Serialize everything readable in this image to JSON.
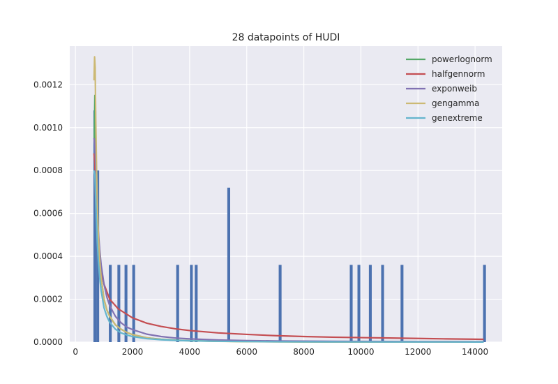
{
  "chart_data": {
    "type": "bar",
    "title": "28 datapoints of HUDI",
    "xlabel": "",
    "ylabel": "",
    "xlim": [
      -200,
      14950
    ],
    "ylim": [
      0,
      0.00138
    ],
    "x_ticks": [
      0,
      2000,
      4000,
      6000,
      8000,
      10000,
      12000,
      14000
    ],
    "x_tick_labels": [
      "0",
      "2000",
      "4000",
      "6000",
      "8000",
      "10000",
      "12000",
      "14000"
    ],
    "y_ticks": [
      0,
      0.0002,
      0.0004,
      0.0006,
      0.0008,
      0.001,
      0.0012
    ],
    "y_tick_labels": [
      "0.0000",
      "0.0002",
      "0.0004",
      "0.0006",
      "0.0008",
      "0.0010",
      "0.0012"
    ],
    "grid": true,
    "legend_position": "top-right",
    "histogram": {
      "color": "#4c72b0",
      "bin_width": 100,
      "bins": [
        {
          "x": 680,
          "value": 0.00108
        },
        {
          "x": 780,
          "value": 0.0008
        },
        {
          "x": 1220,
          "value": 0.00036
        },
        {
          "x": 1520,
          "value": 0.00036
        },
        {
          "x": 1770,
          "value": 0.00036
        },
        {
          "x": 2040,
          "value": 0.00036
        },
        {
          "x": 3580,
          "value": 0.00036
        },
        {
          "x": 4060,
          "value": 0.00036
        },
        {
          "x": 4230,
          "value": 0.00036
        },
        {
          "x": 5370,
          "value": 0.00072
        },
        {
          "x": 7170,
          "value": 0.00036
        },
        {
          "x": 9660,
          "value": 0.00036
        },
        {
          "x": 9930,
          "value": 0.00036
        },
        {
          "x": 10330,
          "value": 0.00036
        },
        {
          "x": 10760,
          "value": 0.00036
        },
        {
          "x": 11440,
          "value": 0.00036
        },
        {
          "x": 14330,
          "value": 0.00036
        }
      ]
    },
    "series": [
      {
        "name": "powerlognorm",
        "color": "#55a868",
        "x": [
          660,
          680,
          700,
          730,
          760,
          800,
          850,
          900,
          1000,
          1100,
          1200,
          1400,
          1600,
          1800,
          2000,
          2500,
          3000,
          3500,
          4000,
          5000,
          6000,
          7000,
          8000,
          9000,
          10000,
          11000,
          12000,
          13000,
          14300
        ],
        "y": [
          0.00095,
          0.00115,
          0.001,
          0.0008,
          0.00065,
          0.0005,
          0.00038,
          0.0003,
          0.0002,
          0.00015,
          0.00012,
          8e-05,
          6e-05,
          4.5e-05,
          3.5e-05,
          2e-05,
          1.3e-05,
          9e-06,
          6.5e-06,
          4e-06,
          2.5e-06,
          1.7e-06,
          1.2e-06,
          9e-07,
          7e-07,
          5e-07,
          4e-07,
          3e-07,
          2e-07
        ]
      },
      {
        "name": "halfgennorm",
        "color": "#c44e52",
        "x": [
          650,
          680,
          700,
          750,
          800,
          900,
          1000,
          1200,
          1500,
          2000,
          2500,
          3000,
          3500,
          4000,
          5000,
          6000,
          7000,
          8000,
          9000,
          10000,
          11000,
          12000,
          13000,
          14300
        ],
        "y": [
          0.00088,
          0.00083,
          0.0007,
          0.00052,
          0.00043,
          0.00033,
          0.00027,
          0.0002,
          0.000155,
          0.000113,
          8.8e-05,
          7.3e-05,
          6.2e-05,
          5.4e-05,
          4.3e-05,
          3.6e-05,
          3e-05,
          2.6e-05,
          2.3e-05,
          2.1e-05,
          1.9e-05,
          1.7e-05,
          1.5e-05,
          1.3e-05
        ]
      },
      {
        "name": "exponweib",
        "color": "#8172b2",
        "x": [
          650,
          680,
          700,
          730,
          760,
          800,
          850,
          900,
          1000,
          1100,
          1200,
          1400,
          1600,
          1800,
          2000,
          2500,
          3000,
          3500,
          4000,
          5000,
          6000,
          7000,
          8000,
          9000,
          10000,
          11000,
          12000,
          13000,
          14300
        ],
        "y": [
          0.00095,
          0.00092,
          0.00085,
          0.00072,
          0.00062,
          0.00052,
          0.00043,
          0.00036,
          0.00027,
          0.00021,
          0.00017,
          0.00012,
          9e-05,
          7e-05,
          5.8e-05,
          3.7e-05,
          2.6e-05,
          1.9e-05,
          1.5e-05,
          1e-05,
          7e-06,
          5.5e-06,
          4.5e-06,
          3.8e-06,
          3.3e-06,
          3e-06,
          2.7e-06,
          2.5e-06,
          2.2e-06
        ]
      },
      {
        "name": "gengamma",
        "color": "#ccb974",
        "x": [
          650,
          670,
          690,
          710,
          740,
          770,
          800,
          850,
          900,
          1000,
          1100,
          1200,
          1400,
          1600,
          1800,
          2000,
          2500,
          3000,
          3500,
          4000,
          5000,
          6000,
          7000,
          8000,
          9000,
          10000,
          11000,
          12000,
          13000,
          14300
        ],
        "y": [
          0.00122,
          0.00133,
          0.00128,
          0.00105,
          0.0008,
          0.00062,
          0.0005,
          0.00038,
          0.0003,
          0.0002,
          0.00015,
          0.00012,
          8e-05,
          6e-05,
          4.5e-05,
          3.5e-05,
          2e-05,
          1.2e-05,
          8e-06,
          6e-06,
          3.5e-06,
          2.2e-06,
          1.5e-06,
          1e-06,
          8e-07,
          6e-07,
          5e-07,
          4e-07,
          3e-07,
          2e-07
        ]
      },
      {
        "name": "genextreme",
        "color": "#64b5cd",
        "x": [
          650,
          680,
          700,
          730,
          760,
          800,
          850,
          900,
          1000,
          1100,
          1200,
          1400,
          1600,
          1800,
          2000,
          2500,
          3000,
          3500,
          4000,
          5000,
          6000,
          7000,
          8000,
          9000,
          10000,
          11000,
          12000,
          13000,
          14300
        ],
        "y": [
          0.0008,
          0.00078,
          0.0007,
          0.00058,
          0.00048,
          0.00038,
          0.0003,
          0.00024,
          0.00016,
          0.00012,
          9.2e-05,
          6e-05,
          4.3e-05,
          3.3e-05,
          2.6e-05,
          1.6e-05,
          1.1e-05,
          8e-06,
          6e-06,
          3.8e-06,
          2.6e-06,
          1.9e-06,
          1.5e-06,
          1.2e-06,
          1e-06,
          8e-07,
          7e-07,
          6e-07,
          5e-07
        ]
      }
    ]
  }
}
